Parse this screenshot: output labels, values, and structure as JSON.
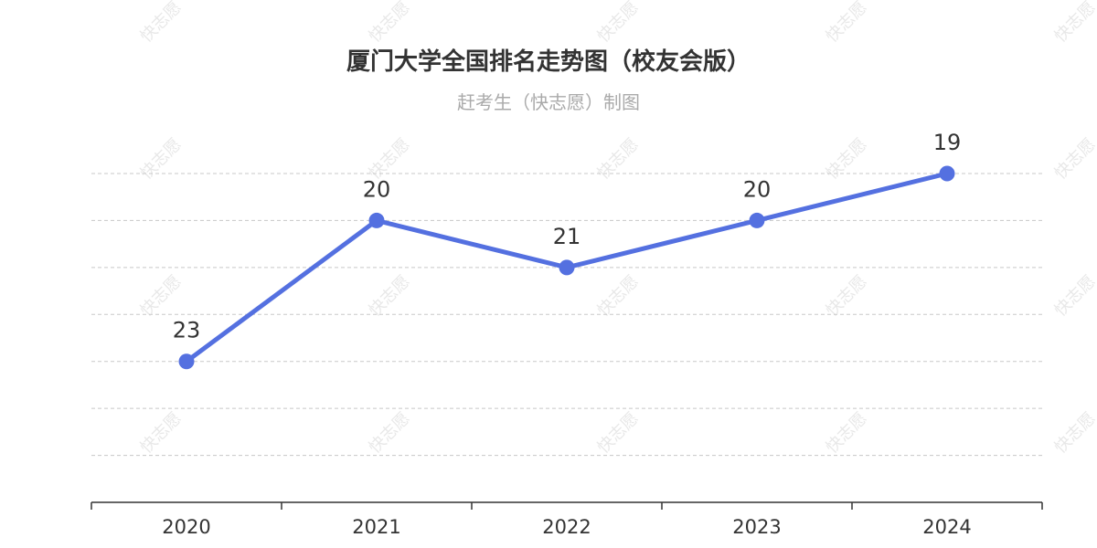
{
  "watermark": "快志愿",
  "colors": {
    "line": "#5470e0",
    "text": "#333333",
    "subtitle": "#aaaaaa",
    "grid": "#c8c8c8"
  },
  "chart_data": {
    "type": "line",
    "title": "厦门大学全国排名走势图（校友会版）",
    "subtitle": "赶考生（快志愿）制图",
    "categories": [
      "2020",
      "2021",
      "2022",
      "2023",
      "2024"
    ],
    "series": [
      {
        "values": [
          23,
          20,
          21,
          20,
          19
        ]
      }
    ],
    "y_inverted": true,
    "ylim": [
      19,
      26
    ],
    "y_grid_lines": 7,
    "y_tick_labels_shown": false,
    "grid": true,
    "legend": "none"
  }
}
